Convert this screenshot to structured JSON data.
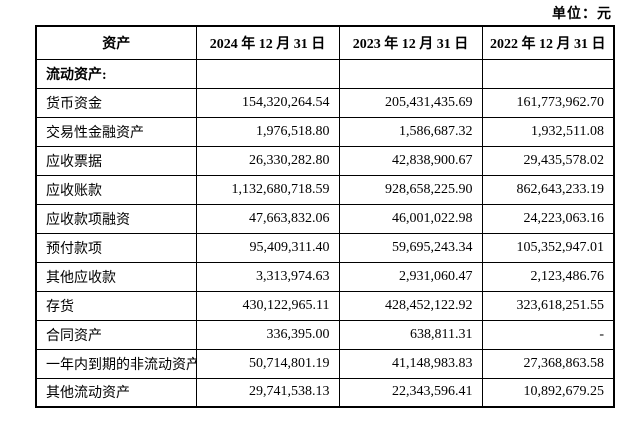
{
  "unit_label": "单位：元",
  "table": {
    "headers": [
      "资产",
      "2024 年 12 月 31 日",
      "2023 年 12 月 31 日",
      "2022 年 12 月 31 日"
    ],
    "rows": [
      {
        "label": "流动资产:",
        "section": true,
        "values": [
          "",
          "",
          ""
        ]
      },
      {
        "label": "货币资金",
        "section": false,
        "values": [
          "154,320,264.54",
          "205,431,435.69",
          "161,773,962.70"
        ]
      },
      {
        "label": "交易性金融资产",
        "section": false,
        "values": [
          "1,976,518.80",
          "1,586,687.32",
          "1,932,511.08"
        ]
      },
      {
        "label": "应收票据",
        "section": false,
        "values": [
          "26,330,282.80",
          "42,838,900.67",
          "29,435,578.02"
        ]
      },
      {
        "label": "应收账款",
        "section": false,
        "values": [
          "1,132,680,718.59",
          "928,658,225.90",
          "862,643,233.19"
        ]
      },
      {
        "label": "应收款项融资",
        "section": false,
        "values": [
          "47,663,832.06",
          "46,001,022.98",
          "24,223,063.16"
        ]
      },
      {
        "label": "预付款项",
        "section": false,
        "values": [
          "95,409,311.40",
          "59,695,243.34",
          "105,352,947.01"
        ]
      },
      {
        "label": "其他应收款",
        "section": false,
        "values": [
          "3,313,974.63",
          "2,931,060.47",
          "2,123,486.76"
        ]
      },
      {
        "label": "存货",
        "section": false,
        "values": [
          "430,122,965.11",
          "428,452,122.92",
          "323,618,251.55"
        ]
      },
      {
        "label": "合同资产",
        "section": false,
        "values": [
          "336,395.00",
          "638,811.31",
          "-"
        ]
      },
      {
        "label": "一年内到期的非流动资产",
        "section": false,
        "values": [
          "50,714,801.19",
          "41,148,983.83",
          "27,368,863.58"
        ]
      },
      {
        "label": "其他流动资产",
        "section": false,
        "values": [
          "29,741,538.13",
          "22,343,596.41",
          "10,892,679.25"
        ]
      }
    ]
  }
}
